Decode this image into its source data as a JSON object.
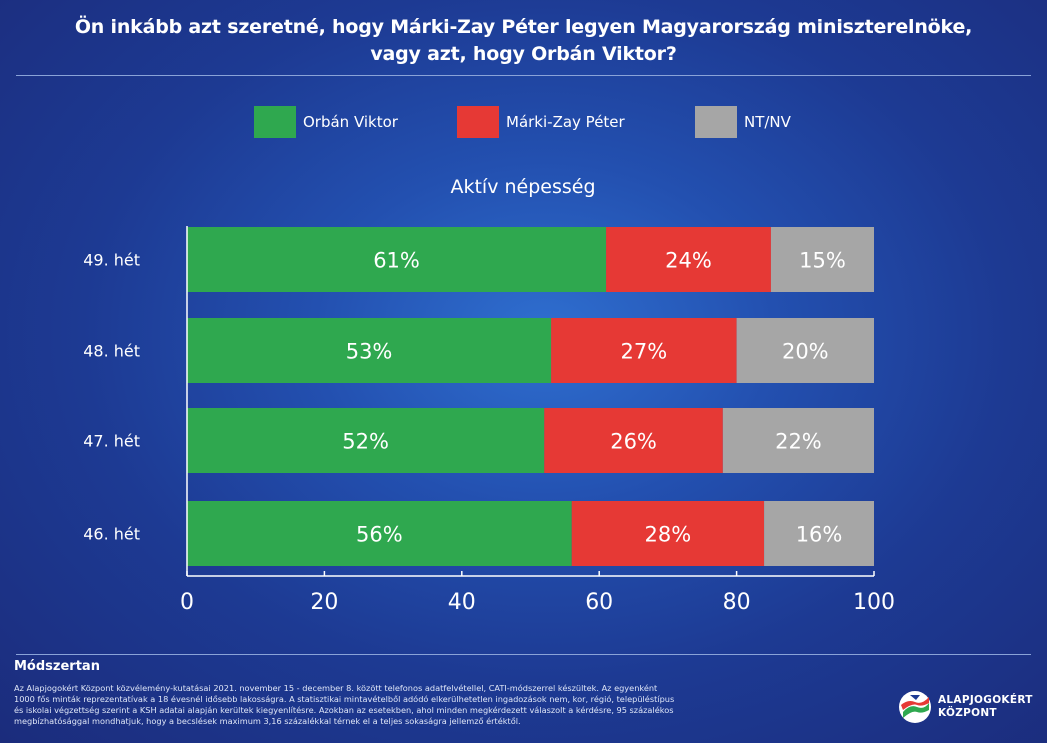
{
  "header": {
    "title_line1": "Ön inkább azt szeretné, hogy Márki-Zay Péter legyen Magyarország miniszterelnöke,",
    "title_line2": "vagy azt, hogy Orbán Viktor?"
  },
  "legend": [
    {
      "label": "Orbán Viktor",
      "color": "#2fa84f"
    },
    {
      "label": "Márki-Zay Péter",
      "color": "#e63935"
    },
    {
      "label": "NT/NV",
      "color": "#a6a6a6"
    }
  ],
  "chart_data": {
    "type": "bar",
    "orientation": "horizontal",
    "stacked": true,
    "title": "Aktív népesség",
    "categories": [
      "49. hét",
      "48. hét",
      "47. hét",
      "46. hét"
    ],
    "series": [
      {
        "name": "Orbán Viktor",
        "color": "#2fa84f",
        "values": [
          61,
          53,
          52,
          56
        ],
        "labels": [
          "61%",
          "53%",
          "52%",
          "56%"
        ]
      },
      {
        "name": "Márki-Zay Péter",
        "color": "#e63935",
        "values": [
          24,
          27,
          26,
          28
        ],
        "labels": [
          "24%",
          "27%",
          "26%",
          "28%"
        ]
      },
      {
        "name": "NT/NV",
        "color": "#a6a6a6",
        "values": [
          15,
          20,
          22,
          16
        ],
        "labels": [
          "15%",
          "20%",
          "22%",
          "16%"
        ]
      }
    ],
    "xlim": [
      0,
      100
    ],
    "xticks": [
      0,
      20,
      40,
      60,
      80,
      100
    ],
    "grid": false,
    "legend_position": "top"
  },
  "methodology": {
    "title": "Módszertan",
    "line1": "Az Alapjogokért Központ közvélemény-kutatásai 2021. november 15 - december 8. között telefonos adatfelvétellel, CATI-módszerrel készültek. Az egyenként",
    "line2": "1000 fős minták reprezentatívak a 18 évesnél idősebb lakosságra. A statisztikai mintavételből adódó elkerülhetetlen ingadozások nem, kor, régió, településtípus",
    "line3": "és iskolai végzettség szerint a KSH adatai alapján kerültek kiegyenlítésre. Azokban az esetekben, ahol minden megkérdezett válaszolt a kérdésre, 95 százalékos",
    "line4": "megbízhatósággal mondhatjuk, hogy a becslések maximum 3,16 százalékkal térnek el a teljes sokaságra jellemző értéktől."
  },
  "logo": {
    "line1": "ALAPJOGOKÉRT",
    "line2": "KÖZPONT",
    "icon": "flag-logo-icon"
  }
}
